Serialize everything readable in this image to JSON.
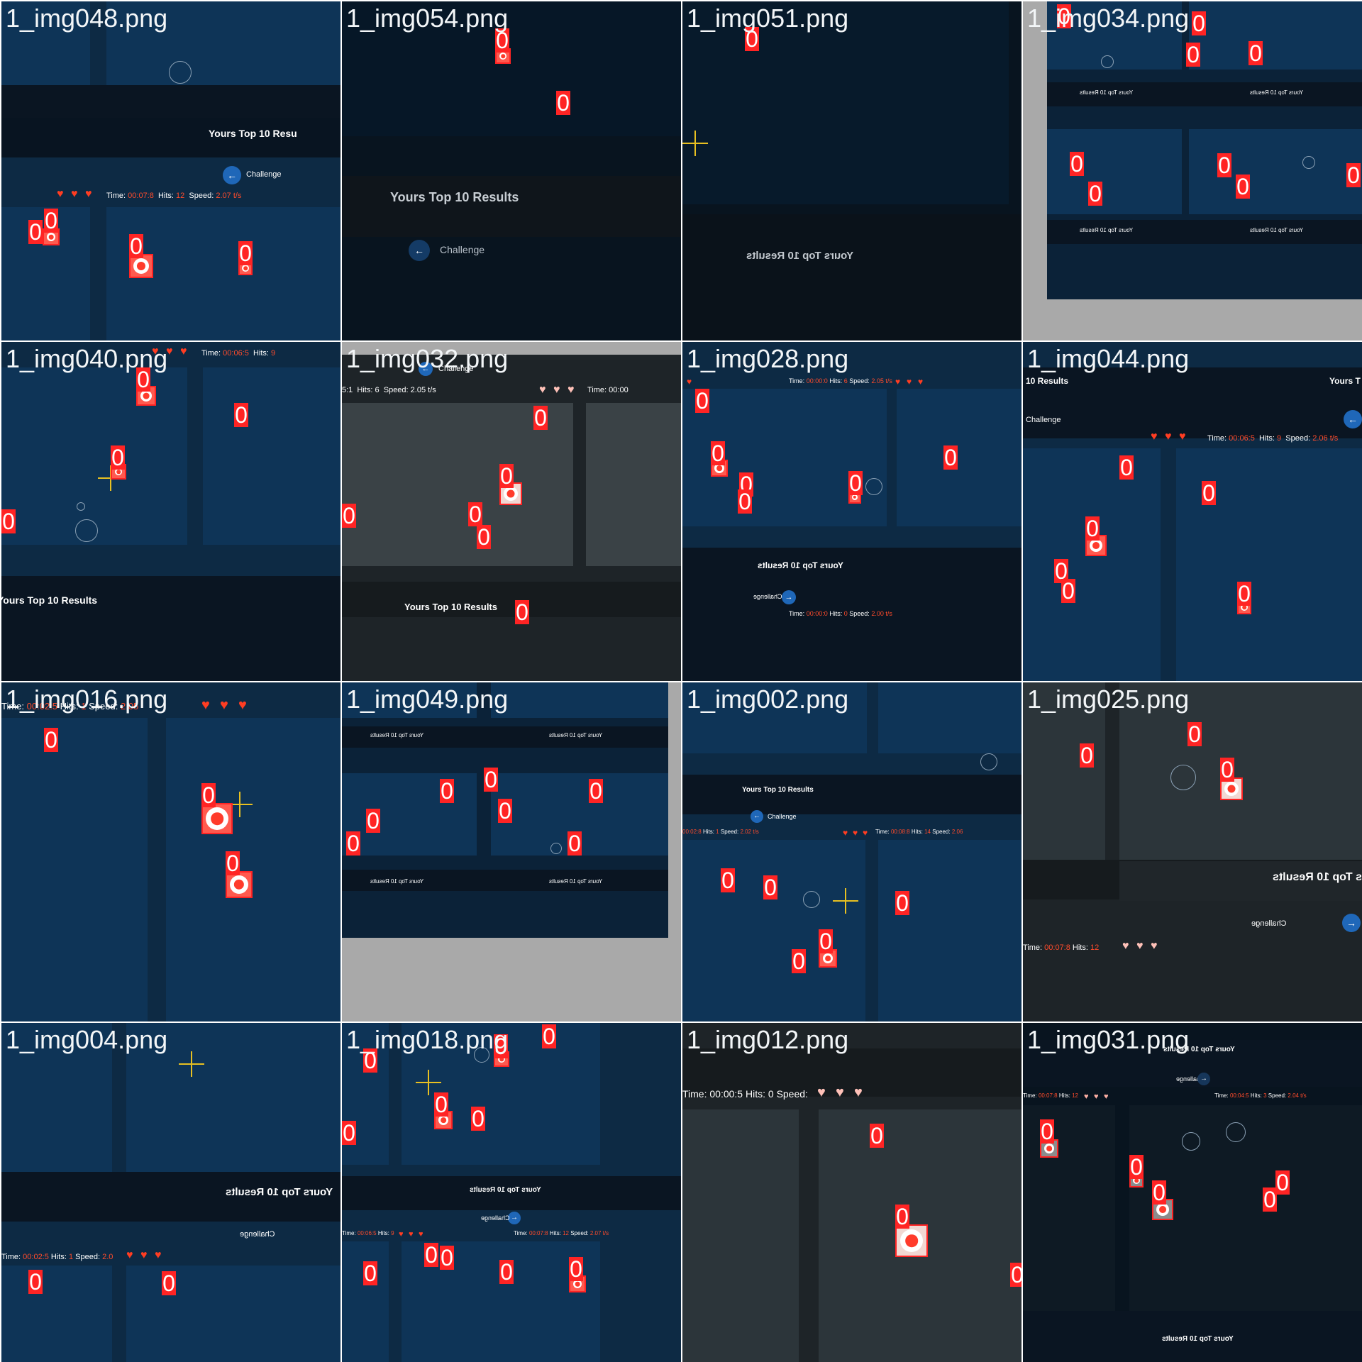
{
  "tiles": [
    {
      "filename": "1_img048.png"
    },
    {
      "filename": "1_img054.png"
    },
    {
      "filename": "1_img051.png"
    },
    {
      "filename": "1_img034.png"
    },
    {
      "filename": "1_img040.png"
    },
    {
      "filename": "1_img032.png"
    },
    {
      "filename": "1_img028.png"
    },
    {
      "filename": "1_img044.png"
    },
    {
      "filename": "1_img016.png"
    },
    {
      "filename": "1_img049.png"
    },
    {
      "filename": "1_img002.png"
    },
    {
      "filename": "1_img025.png"
    },
    {
      "filename": "1_img004.png"
    },
    {
      "filename": "1_img018.png"
    },
    {
      "filename": "1_img012.png"
    },
    {
      "filename": "1_img031.png"
    }
  ],
  "game": {
    "top_results": "Yours Top 10 Results",
    "top_results_partial": "Yours Top 10 Resu",
    "top_results_short": "10 Results",
    "challenge": "Challenge",
    "time_label": "Time:",
    "hits_label": "Hits:",
    "speed_label": "Speed:",
    "t048_time": "00:07:8",
    "t048_hits": "12",
    "t048_speed": "2.07 t/s",
    "t040_time": "00:06:5",
    "t040_hits": "9",
    "t032_hits": "6",
    "t032_speed": "2.05 t/s",
    "t032_time": "00:00",
    "t044_time": "00:06:5",
    "t044_hits": "9",
    "t044_speed": "2.06 t/s",
    "t012_time": "00:00:5",
    "t012_hits": "0"
  },
  "detection_label": "0",
  "colors": {
    "label_box": "#ff2424",
    "bg_blue": "#0b2238",
    "accent_red": "#ff4b2b",
    "crosshair": "#e8c021"
  }
}
